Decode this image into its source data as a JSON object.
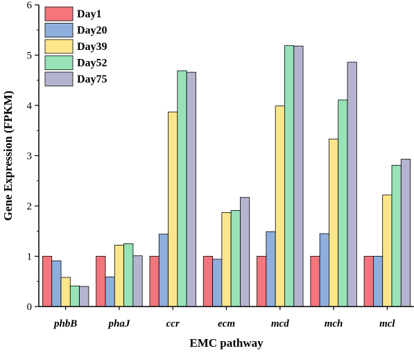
{
  "chart_data": {
    "type": "bar",
    "xlabel": "EMC pathway",
    "ylabel": "Gene Expression (FPKM)",
    "ylim": [
      0,
      6
    ],
    "yticks": [
      "0",
      "1",
      "2",
      "3",
      "4",
      "5",
      "6"
    ],
    "categories": [
      "phbB",
      "phaJ",
      "ccr",
      "ecm",
      "mcd",
      "mch",
      "mcl"
    ],
    "legend_position": "top-left",
    "grid": false,
    "series": [
      {
        "name": "Day1",
        "color": "#f4757b",
        "values": [
          1.0,
          1.0,
          1.0,
          1.0,
          1.0,
          1.0,
          1.0
        ]
      },
      {
        "name": "Day20",
        "color": "#8faedc",
        "values": [
          0.91,
          0.59,
          1.44,
          0.94,
          1.49,
          1.45,
          1.0
        ]
      },
      {
        "name": "Day39",
        "color": "#fde58c",
        "values": [
          0.58,
          1.22,
          3.87,
          1.87,
          3.99,
          3.33,
          2.22
        ]
      },
      {
        "name": "Day52",
        "color": "#98e2b8",
        "values": [
          0.41,
          1.25,
          4.69,
          1.91,
          5.19,
          4.11,
          2.81
        ]
      },
      {
        "name": "Day75",
        "color": "#b4b4d0",
        "values": [
          0.4,
          1.01,
          4.66,
          2.17,
          5.18,
          4.86,
          2.93
        ]
      }
    ]
  }
}
